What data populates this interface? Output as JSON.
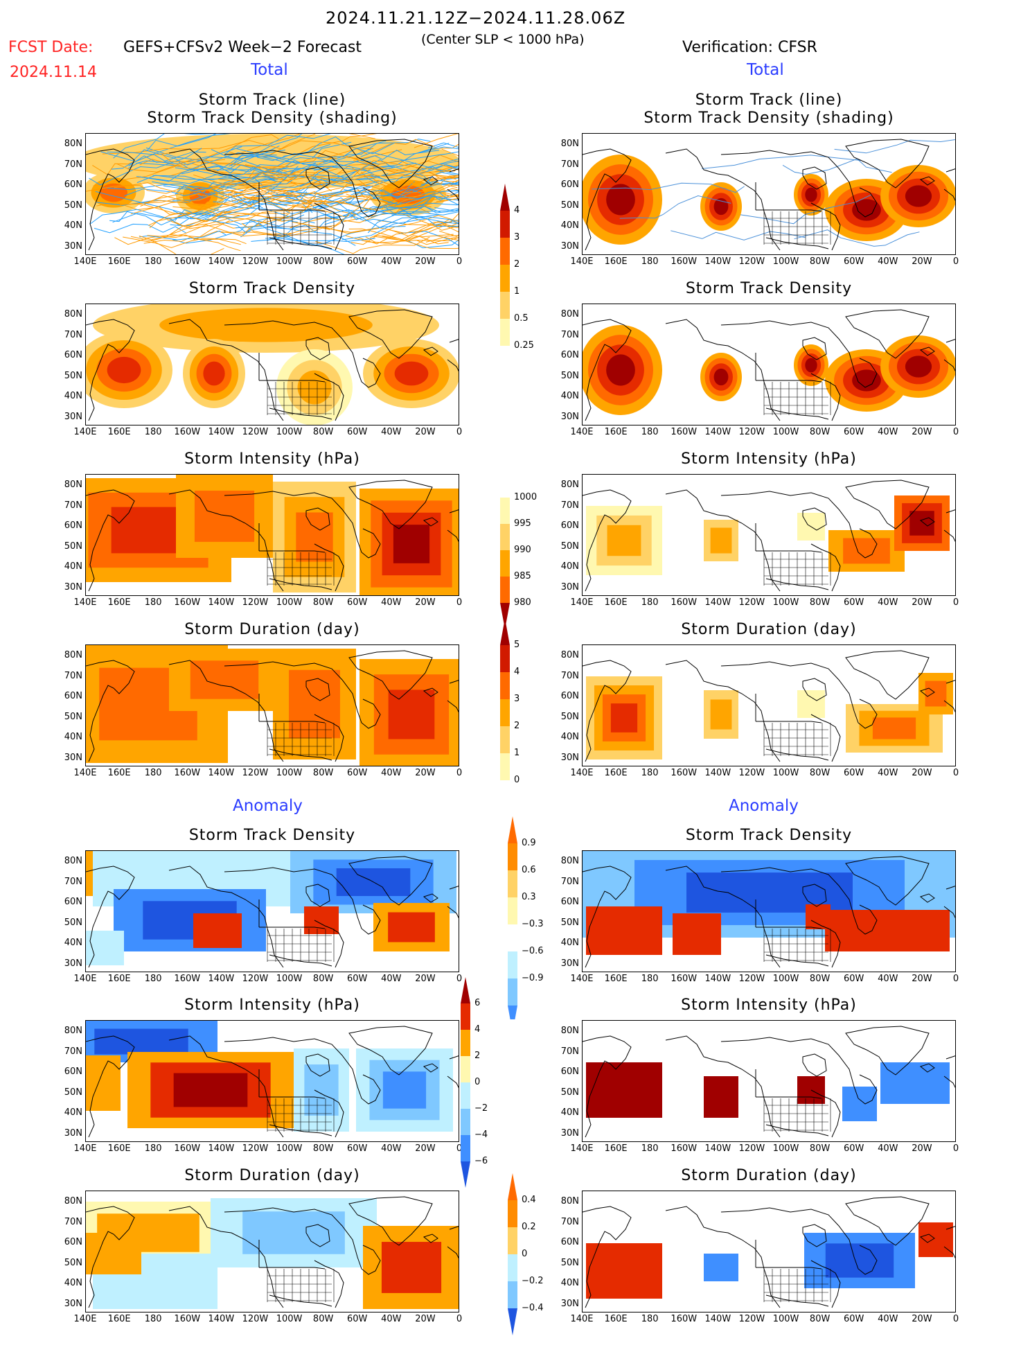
{
  "header": {
    "period": "2024.11.21.12Z−2024.11.28.06Z",
    "fcst_label": "FCST Date:",
    "fcst_date": "2024.11.14",
    "model": "GEFS+CFSv2 Week−2 Forecast",
    "criterion": "(Center SLP < 1000 hPa)",
    "verification": "Verification: CFSR"
  },
  "sections": {
    "total": "Total",
    "anomaly": "Anomaly"
  },
  "panel_titles": {
    "track_line": "Storm Track (line)",
    "track_shading": "Storm Track Density (shading)",
    "density": "Storm Track Density",
    "intensity": "Storm Intensity (hPa)",
    "duration": "Storm Duration (day)"
  },
  "axes": {
    "lat": [
      "80N",
      "70N",
      "60N",
      "50N",
      "40N",
      "30N"
    ],
    "lon": [
      "140E",
      "160E",
      "180",
      "160W",
      "140W",
      "120W",
      "100W",
      "80W",
      "60W",
      "40W",
      "20W",
      "0"
    ]
  },
  "colorbars": {
    "density_total": [
      "4",
      "3",
      "2",
      "1",
      "0.5",
      "0.25"
    ],
    "intensity_total": [
      "1000",
      "995",
      "990",
      "985",
      "980"
    ],
    "duration_total": [
      "5",
      "4",
      "3",
      "2",
      "1",
      "0"
    ],
    "density_anom": [
      "0.9",
      "0.6",
      "0.3",
      "−0.3",
      "−0.6",
      "−0.9"
    ],
    "intensity_anom": [
      "6",
      "4",
      "2",
      "0",
      "−2",
      "−4",
      "−6"
    ],
    "duration_anom": [
      "0.4",
      "0.2",
      "0",
      "−0.2",
      "−0.4"
    ]
  },
  "colors": {
    "warm": [
      "#fff8b0",
      "#ffd266",
      "#ffa500",
      "#ff6a00",
      "#e52b00",
      "#a00000"
    ],
    "cool": [
      "#bff0ff",
      "#7fc8ff",
      "#3f8fff",
      "#1e55e0"
    ],
    "section_blue": "#2a3cff",
    "fcst_red": "#ff2222",
    "track_orange": "#ff9a00",
    "track_blue": "#1f9fff"
  }
}
